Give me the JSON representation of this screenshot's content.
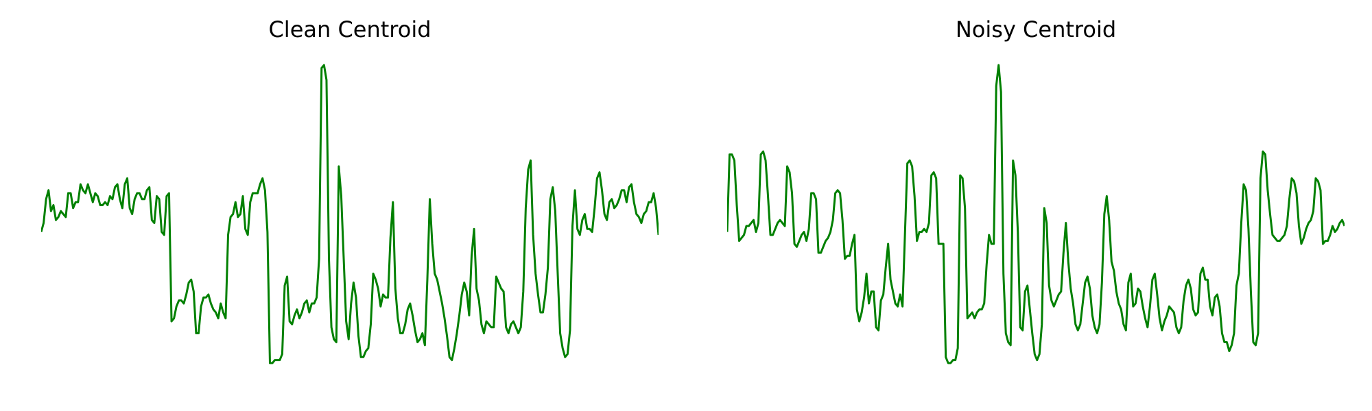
{
  "chart_data": [
    {
      "type": "line",
      "title": "Clean Centroid",
      "xlabel": "",
      "ylabel": "",
      "grid": false,
      "axes_visible": false,
      "line_color": "#008000",
      "x_range": [
        0,
        140
      ],
      "ylim": [
        0,
        1
      ],
      "series": [
        {
          "values": [
            0.44,
            0.47,
            0.55,
            0.58,
            0.51,
            0.53,
            0.48,
            0.49,
            0.51,
            0.5,
            0.49,
            0.57,
            0.57,
            0.52,
            0.54,
            0.54,
            0.6,
            0.58,
            0.57,
            0.6,
            0.57,
            0.54,
            0.57,
            0.56,
            0.53,
            0.53,
            0.54,
            0.53,
            0.56,
            0.55,
            0.59,
            0.6,
            0.55,
            0.52,
            0.6,
            0.62,
            0.52,
            0.5,
            0.55,
            0.57,
            0.57,
            0.55,
            0.55,
            0.58,
            0.59,
            0.48,
            0.47,
            0.56,
            0.55,
            0.44,
            0.43,
            0.56,
            0.57,
            0.14,
            0.15,
            0.19,
            0.21,
            0.21,
            0.2,
            0.23,
            0.27,
            0.28,
            0.24,
            0.1,
            0.1,
            0.19,
            0.22,
            0.22,
            0.23,
            0.2,
            0.18,
            0.17,
            0.15,
            0.2,
            0.17,
            0.15,
            0.43,
            0.49,
            0.5,
            0.54,
            0.49,
            0.5,
            0.56,
            0.45,
            0.43,
            0.54,
            0.57,
            0.57,
            0.57,
            0.6,
            0.62,
            0.58,
            0.44,
            0.0,
            0.0,
            0.01,
            0.01,
            0.01,
            0.03,
            0.26,
            0.29,
            0.14,
            0.13,
            0.16,
            0.18,
            0.15,
            0.17,
            0.2,
            0.21,
            0.17,
            0.2,
            0.2,
            0.22,
            0.35,
            0.99,
            1.0,
            0.95,
            0.35,
            0.12,
            0.08,
            0.07,
            0.66,
            0.56,
            0.35,
            0.14,
            0.08,
            0.2,
            0.27,
            0.22,
            0.09,
            0.02,
            0.02,
            0.04,
            0.05,
            0.13,
            0.3,
            0.28,
            0.25,
            0.19,
            0.23,
            0.22,
            0.22,
            0.42,
            0.54,
            0.25,
            0.15,
            0.1,
            0.1,
            0.13,
            0.18,
            0.2,
            0.16,
            0.11,
            0.07,
            0.08,
            0.1,
            0.06,
            0.28,
            0.55,
            0.4,
            0.3,
            0.28,
            0.24,
            0.2,
            0.15,
            0.09,
            0.02,
            0.01,
            0.05,
            0.1,
            0.16,
            0.23,
            0.27,
            0.24,
            0.16,
            0.36,
            0.45,
            0.25,
            0.21,
            0.13,
            0.1,
            0.14,
            0.13,
            0.12,
            0.12,
            0.29,
            0.27,
            0.25,
            0.24,
            0.12,
            0.1,
            0.13,
            0.14,
            0.12,
            0.1,
            0.12,
            0.24,
            0.52,
            0.65,
            0.68,
            0.43,
            0.3,
            0.23,
            0.17,
            0.17,
            0.23,
            0.32,
            0.55,
            0.59,
            0.51,
            0.3,
            0.1,
            0.05,
            0.02,
            0.03,
            0.11,
            0.46,
            0.58,
            0.45,
            0.43,
            0.48,
            0.5,
            0.45,
            0.45,
            0.44,
            0.52,
            0.62,
            0.64,
            0.58,
            0.5,
            0.48,
            0.54,
            0.55,
            0.52,
            0.53,
            0.55,
            0.58,
            0.58,
            0.54,
            0.59,
            0.6,
            0.54,
            0.5,
            0.49,
            0.47,
            0.5,
            0.51,
            0.54,
            0.54,
            0.57,
            0.52,
            0.43
          ]
        }
      ]
    },
    {
      "type": "line",
      "title": "Noisy Centroid",
      "xlabel": "",
      "ylabel": "",
      "grid": false,
      "axes_visible": false,
      "line_color": "#008000",
      "x_range": [
        0,
        140
      ],
      "ylim": [
        0,
        1
      ],
      "series": [
        {
          "values": [
            0.44,
            0.7,
            0.7,
            0.68,
            0.53,
            0.41,
            0.42,
            0.43,
            0.46,
            0.46,
            0.47,
            0.48,
            0.44,
            0.47,
            0.7,
            0.71,
            0.68,
            0.56,
            0.43,
            0.43,
            0.45,
            0.47,
            0.48,
            0.47,
            0.46,
            0.66,
            0.64,
            0.57,
            0.4,
            0.39,
            0.41,
            0.43,
            0.44,
            0.41,
            0.45,
            0.57,
            0.57,
            0.55,
            0.37,
            0.37,
            0.39,
            0.41,
            0.42,
            0.44,
            0.48,
            0.57,
            0.58,
            0.57,
            0.48,
            0.35,
            0.36,
            0.36,
            0.4,
            0.43,
            0.18,
            0.14,
            0.17,
            0.22,
            0.3,
            0.2,
            0.24,
            0.24,
            0.12,
            0.11,
            0.21,
            0.23,
            0.32,
            0.4,
            0.28,
            0.24,
            0.2,
            0.19,
            0.23,
            0.19,
            0.43,
            0.67,
            0.68,
            0.66,
            0.56,
            0.41,
            0.44,
            0.44,
            0.45,
            0.44,
            0.47,
            0.63,
            0.64,
            0.62,
            0.4,
            0.4,
            0.4,
            0.02,
            0.0,
            0.0,
            0.01,
            0.01,
            0.05,
            0.63,
            0.62,
            0.52,
            0.15,
            0.16,
            0.17,
            0.15,
            0.17,
            0.18,
            0.18,
            0.2,
            0.33,
            0.43,
            0.4,
            0.4,
            0.93,
            1.0,
            0.91,
            0.3,
            0.1,
            0.07,
            0.06,
            0.68,
            0.63,
            0.44,
            0.12,
            0.11,
            0.24,
            0.26,
            0.18,
            0.1,
            0.03,
            0.01,
            0.03,
            0.13,
            0.52,
            0.47,
            0.26,
            0.21,
            0.19,
            0.21,
            0.23,
            0.24,
            0.37,
            0.47,
            0.34,
            0.25,
            0.2,
            0.13,
            0.11,
            0.13,
            0.2,
            0.27,
            0.29,
            0.25,
            0.16,
            0.12,
            0.1,
            0.13,
            0.27,
            0.5,
            0.56,
            0.48,
            0.34,
            0.31,
            0.24,
            0.2,
            0.18,
            0.13,
            0.11,
            0.27,
            0.3,
            0.19,
            0.2,
            0.25,
            0.24,
            0.19,
            0.15,
            0.12,
            0.19,
            0.28,
            0.3,
            0.23,
            0.15,
            0.11,
            0.14,
            0.16,
            0.19,
            0.18,
            0.17,
            0.12,
            0.1,
            0.12,
            0.21,
            0.26,
            0.28,
            0.25,
            0.18,
            0.16,
            0.17,
            0.3,
            0.32,
            0.28,
            0.28,
            0.19,
            0.16,
            0.22,
            0.23,
            0.19,
            0.1,
            0.07,
            0.07,
            0.04,
            0.06,
            0.1,
            0.26,
            0.3,
            0.47,
            0.6,
            0.58,
            0.45,
            0.24,
            0.07,
            0.06,
            0.1,
            0.62,
            0.71,
            0.7,
            0.58,
            0.5,
            0.43,
            0.42,
            0.41,
            0.41,
            0.42,
            0.43,
            0.46,
            0.55,
            0.62,
            0.61,
            0.57,
            0.46,
            0.4,
            0.42,
            0.45,
            0.47,
            0.48,
            0.51,
            0.62,
            0.61,
            0.58,
            0.4,
            0.41,
            0.41,
            0.43,
            0.46,
            0.44,
            0.45,
            0.47,
            0.48,
            0.46
          ]
        }
      ]
    }
  ]
}
